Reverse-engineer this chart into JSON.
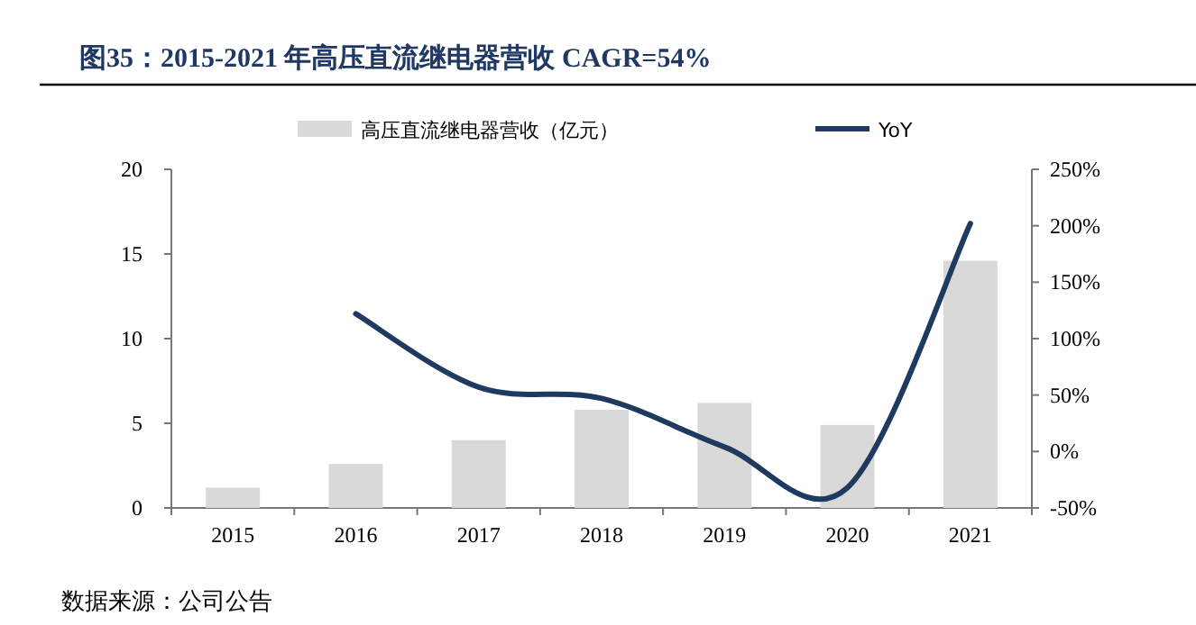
{
  "chart_data": {
    "type": "bar",
    "title": "图35：2015-2021 年高压直流继电器营收 CAGR=54%",
    "categories": [
      "2015",
      "2016",
      "2017",
      "2018",
      "2019",
      "2020",
      "2021"
    ],
    "series": [
      {
        "name": "高压直流继电器营收（亿元）",
        "color": "#d9d9d9",
        "values": [
          1.2,
          2.6,
          4.0,
          5.8,
          6.2,
          4.9,
          14.6
        ]
      },
      {
        "name": "YoY",
        "type": "line",
        "axis": "y2",
        "color": "#1f3a60",
        "values": [
          null,
          122,
          57,
          47,
          4,
          -32,
          202
        ]
      }
    ],
    "ylim": [
      0,
      20
    ],
    "yticks": [
      0,
      5,
      10,
      15,
      20
    ],
    "y2lim": [
      -50,
      250
    ],
    "y2ticks": [
      {
        "value": -50,
        "label": "-50%"
      },
      {
        "value": 0,
        "label": "0%"
      },
      {
        "value": 50,
        "label": "50%"
      },
      {
        "value": 100,
        "label": "100%"
      },
      {
        "value": 150,
        "label": "150%"
      },
      {
        "value": 200,
        "label": "200%"
      },
      {
        "value": 250,
        "label": "250%"
      }
    ],
    "legend": "top",
    "grid": false,
    "annotations": [
      "数据来源：公司公告"
    ]
  }
}
